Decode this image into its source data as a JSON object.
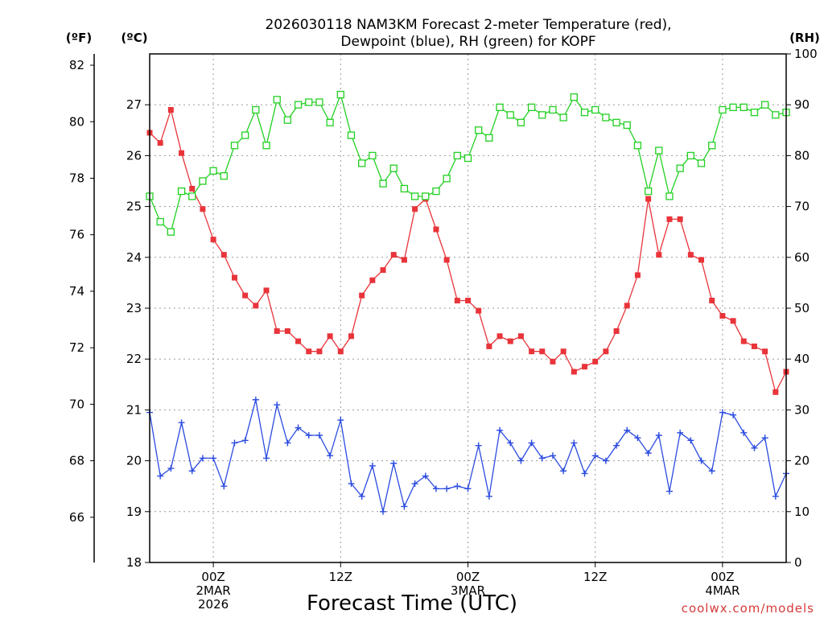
{
  "chart_data": {
    "type": "line",
    "title": [
      "2026030118 NAM3KM Forecast 2-meter Temperature (red),",
      "Dewpoint (blue), RH (green) for KOPF"
    ],
    "xlabel": "Forecast Time (UTC)",
    "credit": "coolwx.com/models",
    "units": {
      "f": "(ºF)",
      "c": "(ºC)",
      "rh": "(RH)"
    },
    "x_ticks": [
      {
        "hour": 6,
        "lines": [
          "00Z",
          "2MAR",
          "2026"
        ]
      },
      {
        "hour": 18,
        "lines": [
          "12Z"
        ]
      },
      {
        "hour": 30,
        "lines": [
          "00Z",
          "3MAR"
        ]
      },
      {
        "hour": 42,
        "lines": [
          "12Z"
        ]
      },
      {
        "hour": 54,
        "lines": [
          "00Z",
          "4MAR"
        ]
      }
    ],
    "xlim": [
      0,
      60
    ],
    "c_axis": {
      "ylim": [
        18,
        28
      ],
      "ticks": [
        18,
        19,
        20,
        21,
        22,
        23,
        24,
        25,
        26,
        27
      ]
    },
    "f_axis": {
      "ylim": [
        64.4,
        82.4
      ],
      "ticks": [
        66,
        68,
        70,
        72,
        74,
        76,
        78,
        80,
        82
      ]
    },
    "rh_axis": {
      "ylim": [
        0,
        100
      ],
      "ticks": [
        0,
        10,
        20,
        30,
        40,
        50,
        60,
        70,
        80,
        90,
        100
      ]
    },
    "series": [
      {
        "name": "Temperature",
        "units": "C",
        "color": "#e8343a",
        "marker": "filled-square",
        "values": [
          26.45,
          26.25,
          26.9,
          26.05,
          25.35,
          24.95,
          24.35,
          24.05,
          23.6,
          23.25,
          23.05,
          23.35,
          22.55,
          22.55,
          22.35,
          22.15,
          22.15,
          22.45,
          22.15,
          22.45,
          23.25,
          23.55,
          23.75,
          24.05,
          23.95,
          24.95,
          25.15,
          24.55,
          23.95,
          23.15,
          23.15,
          22.95,
          22.25,
          22.45,
          22.35,
          22.45,
          22.15,
          22.15,
          21.95,
          22.15,
          21.75,
          21.85,
          21.95,
          22.15,
          22.55,
          23.05,
          23.65,
          25.15,
          24.05,
          24.75,
          24.75,
          24.05,
          23.95,
          23.15,
          22.85,
          22.75,
          22.35,
          22.25,
          22.15,
          21.35,
          21.75
        ]
      },
      {
        "name": "Dewpoint",
        "units": "C",
        "color": "#2b4be0",
        "marker": "plus",
        "values": [
          20.95,
          19.7,
          19.85,
          20.75,
          19.8,
          20.05,
          20.05,
          19.5,
          20.35,
          20.4,
          21.2,
          20.05,
          21.1,
          20.35,
          20.65,
          20.5,
          20.5,
          20.1,
          20.8,
          19.55,
          19.3,
          19.9,
          19.0,
          19.95,
          19.1,
          19.55,
          19.7,
          19.45,
          19.45,
          19.5,
          19.45,
          20.3,
          19.3,
          20.6,
          20.35,
          20.0,
          20.35,
          20.05,
          20.1,
          19.8,
          20.35,
          19.75,
          20.1,
          20.0,
          20.3,
          20.6,
          20.45,
          20.15,
          20.5,
          19.4,
          20.55,
          20.4,
          20.0,
          19.8,
          20.95,
          20.9,
          20.55,
          20.25,
          20.45,
          19.3,
          19.75
        ]
      },
      {
        "name": "Relative Humidity",
        "units": "%",
        "color": "#22d022",
        "marker": "open-square",
        "values": [
          72,
          67,
          65,
          73,
          72,
          75,
          77,
          76,
          82,
          84,
          89,
          82,
          91,
          87,
          90,
          90.5,
          90.5,
          86.5,
          92,
          84,
          78.5,
          80,
          74.5,
          77.5,
          73.5,
          72,
          72,
          73,
          75.5,
          80,
          79.5,
          85,
          83.5,
          89.5,
          88,
          86.5,
          89.5,
          88,
          89,
          87.5,
          91.5,
          88.5,
          89,
          87.5,
          86.5,
          86,
          82,
          73,
          81,
          72,
          77.5,
          80,
          78.5,
          82,
          89,
          89.5,
          89.5,
          88.5,
          90,
          88,
          88.5
        ]
      }
    ]
  }
}
